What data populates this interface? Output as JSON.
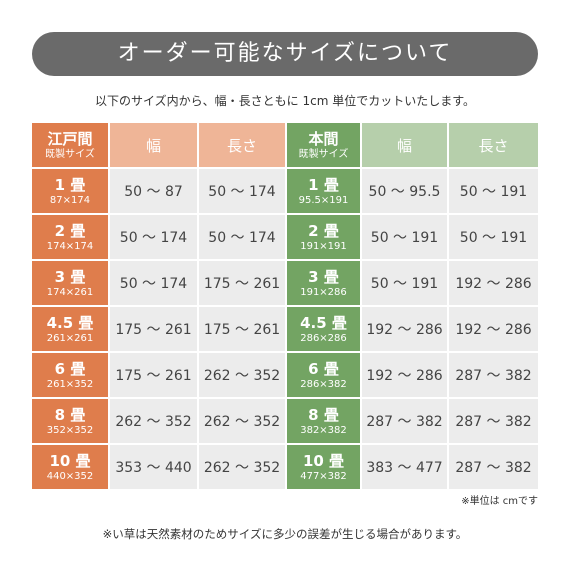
{
  "title": "オーダー可能なサイズについて",
  "subtitle": "以下のサイズ内から、幅・長さともに 1cm 単位でカットいたします。",
  "table": {
    "edo_header": {
      "name": "江戸間",
      "sub": "既製サイズ"
    },
    "hon_header": {
      "name": "本間",
      "sub": "既製サイズ"
    },
    "columns": [
      "幅",
      "長さ",
      "幅",
      "長さ"
    ],
    "rows": [
      {
        "edo_label": "1 畳",
        "edo_size": "87×174",
        "edo_width": "50 ～ 87",
        "edo_length": "50 ～ 174",
        "hon_label": "1 畳",
        "hon_size": "95.5×191",
        "hon_width": "50 ～ 95.5",
        "hon_length": "50 ～ 191"
      },
      {
        "edo_label": "2 畳",
        "edo_size": "174×174",
        "edo_width": "50 ～ 174",
        "edo_length": "50 ～ 174",
        "hon_label": "2 畳",
        "hon_size": "191×191",
        "hon_width": "50 ～ 191",
        "hon_length": "50 ～ 191"
      },
      {
        "edo_label": "3 畳",
        "edo_size": "174×261",
        "edo_width": "50 ～ 174",
        "edo_length": "175 ～ 261",
        "hon_label": "3 畳",
        "hon_size": "191×286",
        "hon_width": "50 ～ 191",
        "hon_length": "192 ～ 286"
      },
      {
        "edo_label": "4.5 畳",
        "edo_size": "261×261",
        "edo_width": "175 ～ 261",
        "edo_length": "175 ～ 261",
        "hon_label": "4.5 畳",
        "hon_size": "286×286",
        "hon_width": "192 ～ 286",
        "hon_length": "192 ～ 286"
      },
      {
        "edo_label": "6 畳",
        "edo_size": "261×352",
        "edo_width": "175 ～ 261",
        "edo_length": "262 ～ 352",
        "hon_label": "6 畳",
        "hon_size": "286×382",
        "hon_width": "192 ～ 286",
        "hon_length": "287 ～ 382"
      },
      {
        "edo_label": "8 畳",
        "edo_size": "352×352",
        "edo_width": "262 ～ 352",
        "edo_length": "262 ～ 352",
        "hon_label": "8 畳",
        "hon_size": "382×382",
        "hon_width": "287 ～ 382",
        "hon_length": "287 ～ 382"
      },
      {
        "edo_label": "10 畳",
        "edo_size": "440×352",
        "edo_width": "353 ～ 440",
        "edo_length": "262 ～ 352",
        "hon_label": "10 畳",
        "hon_size": "477×382",
        "hon_width": "383 ～ 477",
        "hon_length": "287 ～ 382"
      }
    ]
  },
  "unit_note": "※単位は cmです",
  "footnote": "※い草は天然素材のためサイズに多少の誤差が生じる場合があります。"
}
